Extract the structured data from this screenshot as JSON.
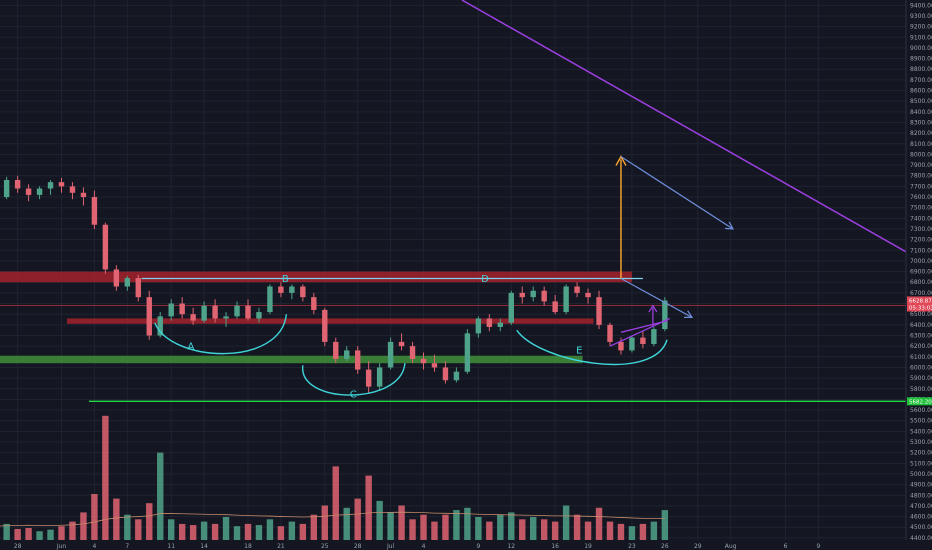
{
  "colors": {
    "background": "#141722",
    "grid": "#1f2330",
    "bull": "#4fa38a",
    "bear": "#e06472",
    "resistance_zone": "#c0252d",
    "support_zone": "#3f8f3a",
    "support_line": "#22d84a",
    "neckline": "#7fd1ef",
    "downtrend": "#9b3fe0",
    "target_arrow": "#ffa82e",
    "projection_arrow": "#6f8fdd",
    "pattern_arc": "#3fd4d8",
    "price_badge_bg": "#e04757",
    "support_badge_bg": "#1fbf3a",
    "volume_ma": "#c58b6a"
  },
  "chart_data": {
    "type": "candlestick",
    "symbol_timeframe": "daily",
    "y_axis": {
      "range": [
        4380,
        9450
      ],
      "ticks": [
        9400,
        9300,
        9200,
        9100,
        9000,
        8900,
        8800,
        8700,
        8600,
        8500,
        8400,
        8300,
        8200,
        8100,
        8000,
        7900,
        7800,
        7700,
        7600,
        7500,
        7400,
        7300,
        7200,
        7100,
        7000,
        6900,
        6800,
        6700,
        6600,
        6500,
        6400,
        6300,
        6200,
        6100,
        6000,
        5900,
        5800,
        5700,
        5600,
        5500,
        5400,
        5300,
        5200,
        5100,
        5000,
        4900,
        4800,
        4700,
        4600,
        4500,
        4400
      ],
      "tick_labels": [
        "9400.00",
        "9300.00",
        "9200.00",
        "9100.00",
        "9000.00",
        "8900.00",
        "8800.00",
        "8700.00",
        "8600.00",
        "8500.00",
        "8400.00",
        "8300.00",
        "8200.00",
        "8100.00",
        "8000.00",
        "7900.00",
        "7800.00",
        "7700.00",
        "7600.00",
        "7500.00",
        "7400.00",
        "7300.00",
        "7200.00",
        "7100.00",
        "7000.00",
        "6900.00",
        "6800.00",
        "6700.00",
        "6600.00",
        "6500.00",
        "6400.00",
        "6300.00",
        "6200.00",
        "6100.00",
        "6000.00",
        "5900.00",
        "5800.00",
        "5700.00",
        "5600.00",
        "5500.00",
        "5400.00",
        "5300.00",
        "5200.00",
        "5100.00",
        "5000.00",
        "4900.00",
        "4800.00",
        "4700.00",
        "4600.00",
        "4500.00",
        "4400.00"
      ]
    },
    "x_axis": {
      "labels": [
        "28",
        "Jun",
        "4",
        "7",
        "11",
        "14",
        "18",
        "21",
        "25",
        "28",
        "Jul",
        "4",
        "9",
        "12",
        "16",
        "19",
        "23",
        "26",
        "29",
        "Aug",
        "6",
        "9"
      ],
      "day_index": [
        -4,
        0,
        3,
        6,
        10,
        13,
        17,
        20,
        24,
        27,
        30,
        33,
        38,
        41,
        45,
        48,
        52,
        55,
        58,
        61,
        66,
        69
      ]
    },
    "last_price_badge": "6628.87",
    "last_price_badge_sub": "05:33:03",
    "support_badge": "5682.20",
    "candles": [
      [
        7350,
        7450,
        7280,
        7380
      ],
      [
        7380,
        7420,
        7180,
        7220
      ],
      [
        7220,
        7260,
        7080,
        7120
      ],
      [
        7120,
        7400,
        7090,
        7380
      ],
      [
        7380,
        7520,
        7300,
        7480
      ],
      [
        7480,
        7520,
        7350,
        7420
      ],
      [
        7420,
        7600,
        7400,
        7560
      ],
      [
        7560,
        7640,
        7420,
        7480
      ],
      [
        7480,
        7720,
        7460,
        7690
      ],
      [
        7690,
        7760,
        7600,
        7640
      ],
      [
        7640,
        7780,
        7560,
        7720
      ],
      [
        7720,
        7740,
        7580,
        7620
      ],
      [
        7620,
        7660,
        7460,
        7520
      ],
      [
        7520,
        7640,
        7500,
        7600
      ],
      [
        7600,
        7790,
        7580,
        7760
      ],
      [
        7760,
        7800,
        7640,
        7680
      ],
      [
        7680,
        7720,
        7560,
        7620
      ],
      [
        7620,
        7700,
        7580,
        7680
      ],
      [
        7680,
        7760,
        7620,
        7740
      ],
      [
        7740,
        7780,
        7640,
        7700
      ],
      [
        7700,
        7740,
        7580,
        7640
      ],
      [
        7640,
        7690,
        7520,
        7600
      ],
      [
        7600,
        7660,
        7300,
        7340
      ],
      [
        7340,
        7360,
        6880,
        6920
      ],
      [
        6920,
        6960,
        6720,
        6760
      ],
      [
        6760,
        6860,
        6720,
        6840
      ],
      [
        6840,
        6870,
        6620,
        6660
      ],
      [
        6660,
        6720,
        6260,
        6300
      ],
      [
        6300,
        6520,
        6280,
        6480
      ],
      [
        6480,
        6640,
        6440,
        6600
      ],
      [
        6600,
        6660,
        6460,
        6500
      ],
      [
        6500,
        6560,
        6400,
        6440
      ],
      [
        6440,
        6620,
        6420,
        6580
      ],
      [
        6580,
        6640,
        6420,
        6460
      ],
      [
        6460,
        6520,
        6380,
        6480
      ],
      [
        6480,
        6620,
        6460,
        6580
      ],
      [
        6580,
        6640,
        6440,
        6460
      ],
      [
        6460,
        6560,
        6420,
        6520
      ],
      [
        6520,
        6780,
        6500,
        6760
      ],
      [
        6760,
        6800,
        6660,
        6700
      ],
      [
        6700,
        6780,
        6640,
        6760
      ],
      [
        6760,
        6780,
        6620,
        6660
      ],
      [
        6660,
        6700,
        6500,
        6540
      ],
      [
        6540,
        6560,
        6200,
        6240
      ],
      [
        6240,
        6280,
        6040,
        6080
      ],
      [
        6080,
        6200,
        6060,
        6160
      ],
      [
        6160,
        6200,
        5940,
        5980
      ],
      [
        5980,
        6060,
        5760,
        5820
      ],
      [
        5820,
        6040,
        5780,
        6000
      ],
      [
        6000,
        6280,
        5980,
        6240
      ],
      [
        6240,
        6320,
        6160,
        6200
      ],
      [
        6200,
        6240,
        6040,
        6080
      ],
      [
        6080,
        6140,
        5980,
        6040
      ],
      [
        6040,
        6120,
        5960,
        6000
      ],
      [
        6000,
        6060,
        5850,
        5880
      ],
      [
        5880,
        6000,
        5860,
        5960
      ],
      [
        5960,
        6360,
        5940,
        6320
      ],
      [
        6320,
        6480,
        6280,
        6460
      ],
      [
        6460,
        6500,
        6340,
        6380
      ],
      [
        6380,
        6460,
        6340,
        6420
      ],
      [
        6420,
        6720,
        6400,
        6700
      ],
      [
        6700,
        6760,
        6600,
        6660
      ],
      [
        6660,
        6760,
        6620,
        6720
      ],
      [
        6720,
        6760,
        6580,
        6620
      ],
      [
        6620,
        6680,
        6500,
        6520
      ],
      [
        6520,
        6780,
        6500,
        6760
      ],
      [
        6760,
        6800,
        6660,
        6700
      ],
      [
        6700,
        6740,
        6600,
        6660
      ],
      [
        6660,
        6720,
        6360,
        6400
      ],
      [
        6400,
        6420,
        6200,
        6240
      ],
      [
        6240,
        6280,
        6120,
        6160
      ],
      [
        6160,
        6300,
        6140,
        6280
      ],
      [
        6280,
        6340,
        6180,
        6220
      ],
      [
        6220,
        6380,
        6200,
        6360
      ],
      [
        6360,
        6660,
        6340,
        6628
      ]
    ],
    "volume_range": [
      0,
      6000
    ],
    "volumes": [
      400,
      350,
      500,
      600,
      450,
      700,
      520,
      480,
      600,
      900,
      500,
      550,
      420,
      600,
      700,
      480,
      520,
      380,
      450,
      600,
      800,
      1200,
      2000,
      5400,
      1800,
      1100,
      900,
      1600,
      3800,
      900,
      700,
      650,
      800,
      700,
      1000,
      600,
      700,
      650,
      900,
      600,
      800,
      700,
      1100,
      1500,
      3200,
      1400,
      1800,
      2800,
      1700,
      1200,
      1500,
      900,
      1100,
      800,
      1100,
      1300,
      1400,
      1000,
      800,
      1100,
      1200,
      900,
      1000,
      900,
      800,
      1500,
      1100,
      800,
      1400,
      800,
      700,
      600,
      700,
      800,
      1300
    ],
    "volume_ma": [
      500,
      500,
      500,
      510,
      520,
      530,
      530,
      530,
      540,
      560,
      570,
      580,
      580,
      600,
      620,
      630,
      640,
      630,
      630,
      640,
      660,
      700,
      780,
      900,
      960,
      1000,
      1020,
      1050,
      1150,
      1150,
      1140,
      1130,
      1120,
      1110,
      1100,
      1080,
      1060,
      1050,
      1040,
      1020,
      1010,
      1000,
      1010,
      1030,
      1080,
      1100,
      1130,
      1180,
      1200,
      1200,
      1210,
      1200,
      1190,
      1170,
      1160,
      1150,
      1140,
      1120,
      1110,
      1100,
      1090,
      1080,
      1070,
      1060,
      1050,
      1050,
      1040,
      1030,
      1020,
      1000,
      980,
      960,
      940,
      930,
      930
    ],
    "annotations": {
      "labels": [
        "A",
        "B",
        "C",
        "D",
        "E"
      ],
      "resistance_zone": [
        6800,
        6900
      ],
      "inner_zone": [
        6410,
        6460
      ],
      "support_zone": [
        6040,
        6110
      ],
      "neckline": 6835,
      "support_line": 5682,
      "downtrend_from": [
        36.5,
        9450
      ],
      "downtrend_to": [
        74,
        7260
      ],
      "target_arrow_value": [
        6835,
        7980
      ]
    }
  }
}
